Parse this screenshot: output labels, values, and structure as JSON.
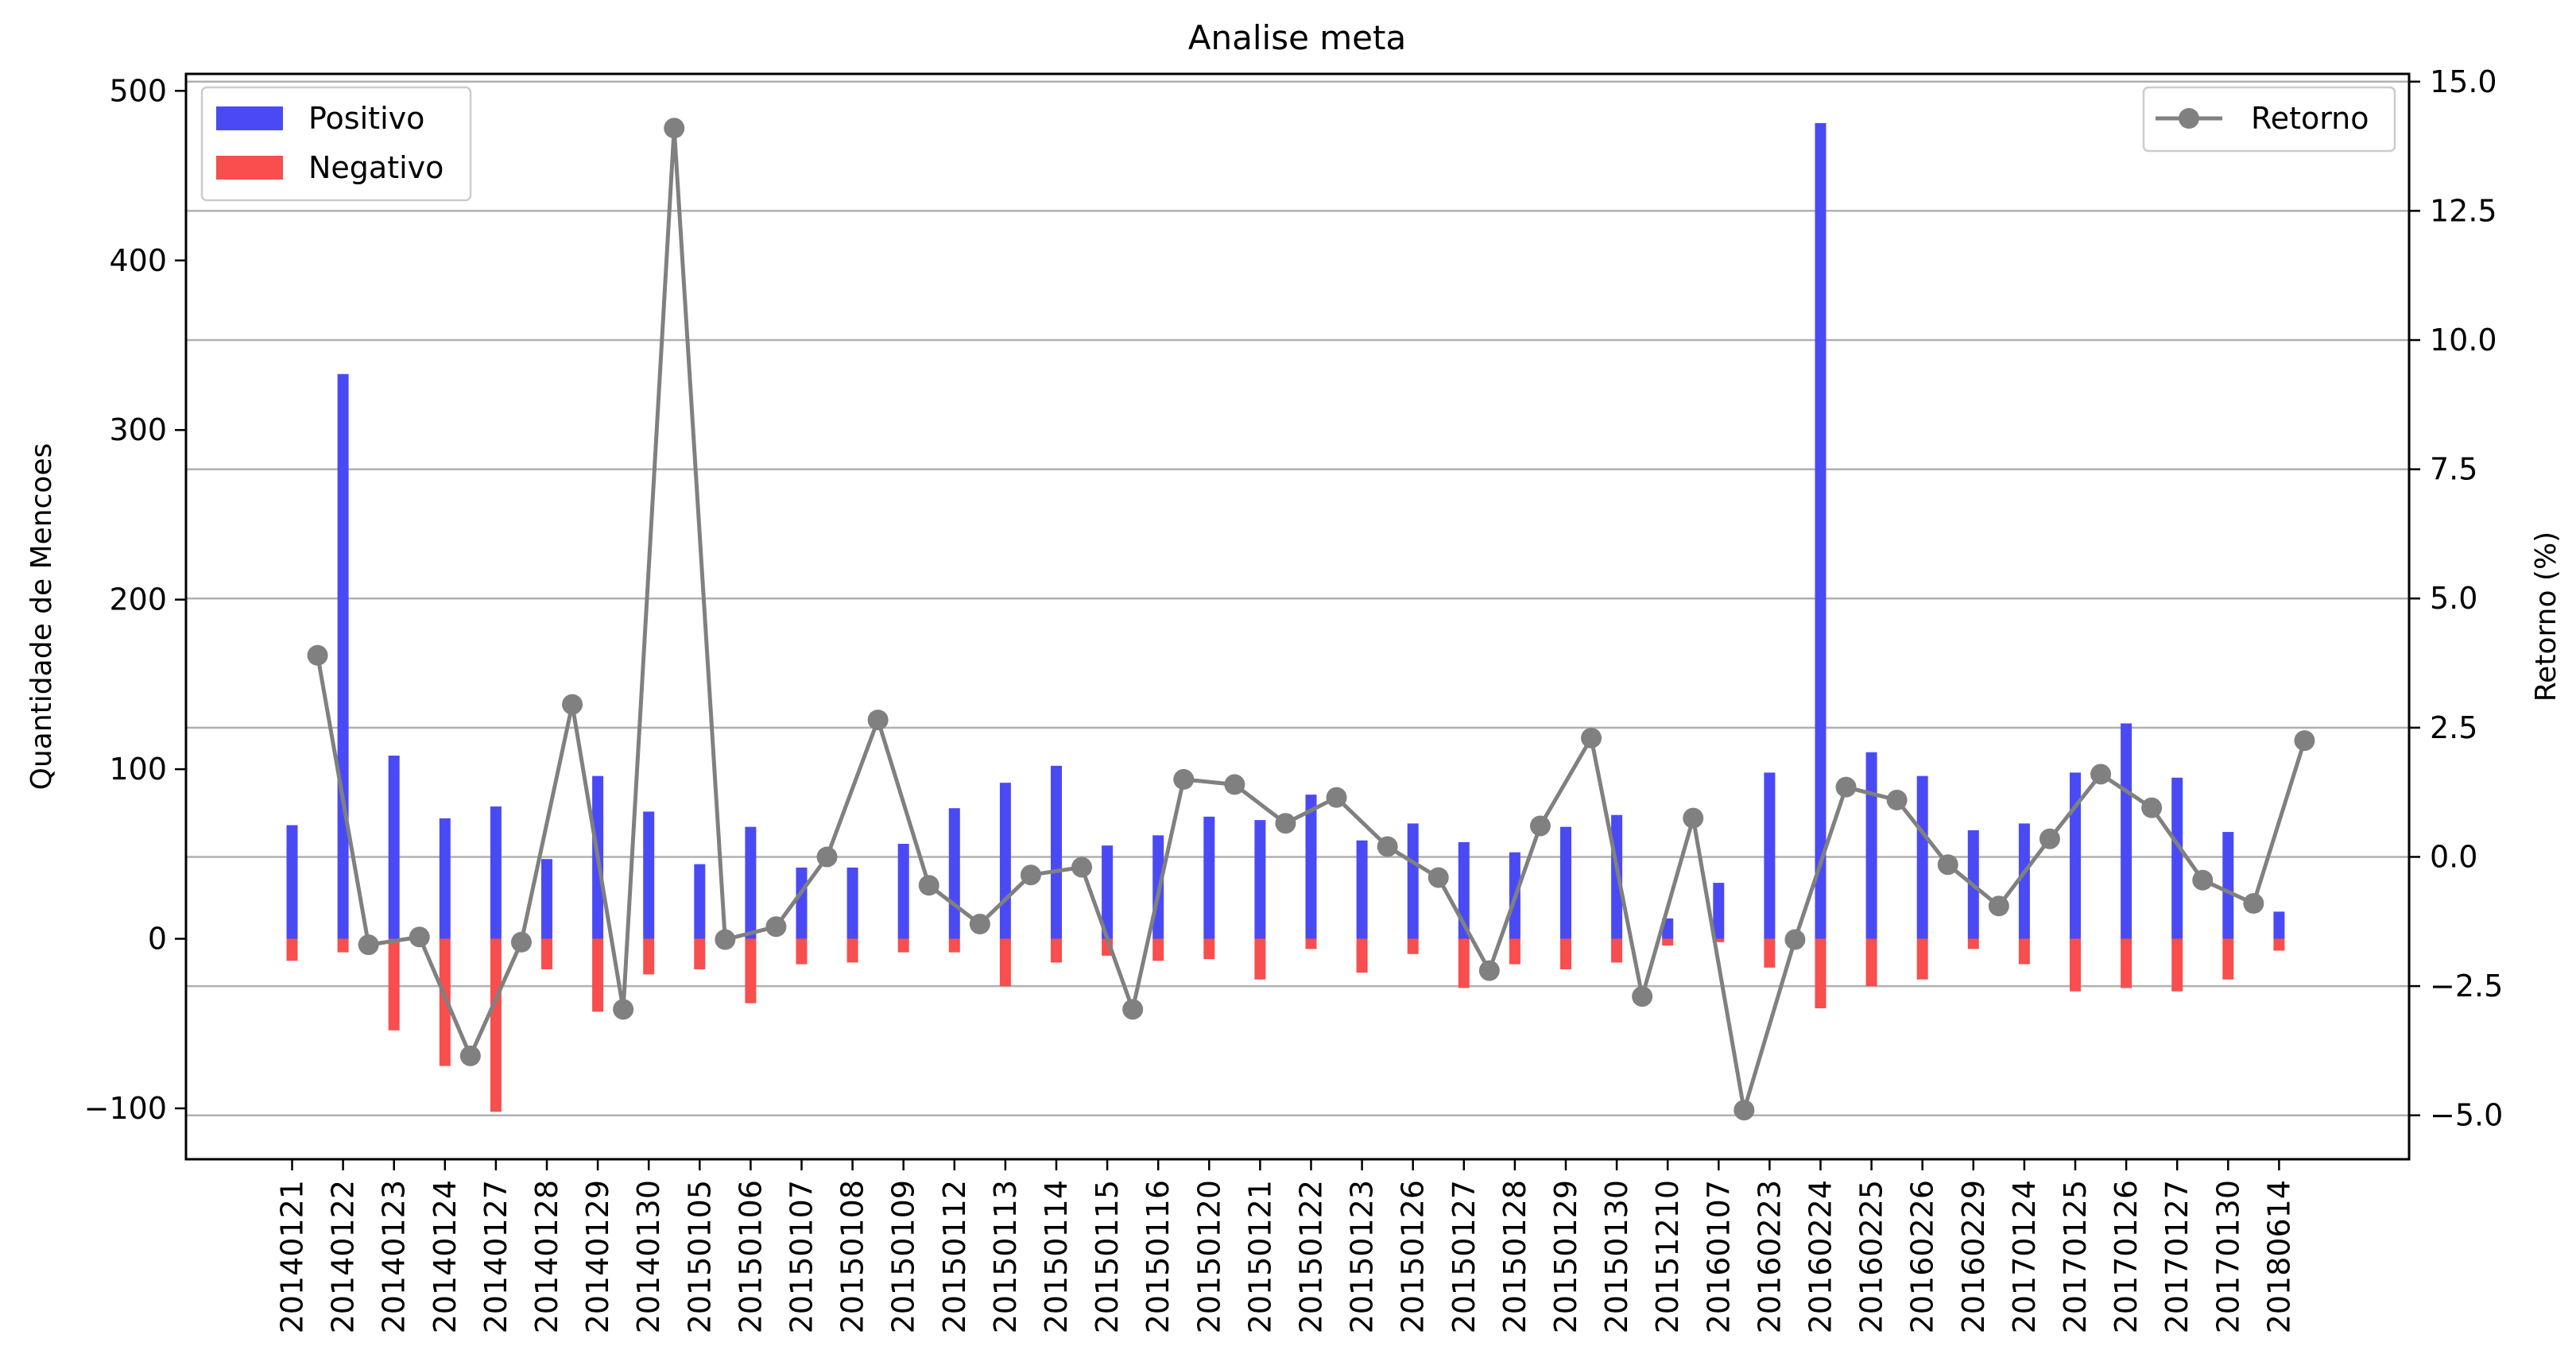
{
  "chart_data": {
    "type": "bar",
    "title": "Analise meta",
    "xlabel": "",
    "ylabel": "Quantidade de Mencoes",
    "y2label": "Retorno (%)",
    "ylim": [
      -130,
      510
    ],
    "y2lim": [
      -5.85,
      15.15
    ],
    "yticks": [
      -100,
      0,
      100,
      200,
      300,
      400,
      500
    ],
    "y2ticks": [
      -5.0,
      -2.5,
      0.0,
      2.5,
      5.0,
      7.5,
      10.0,
      12.5,
      15.0
    ],
    "grid": "right-axis horizontal",
    "legend_left": "top-left",
    "legend_right": "top-right",
    "colors": {
      "positive": "#4a4af5",
      "negative": "#f84e4e",
      "return": "#808080"
    },
    "categories": [
      "20140121",
      "20140122",
      "20140123",
      "20140124",
      "20140127",
      "20140128",
      "20140129",
      "20140130",
      "20150105",
      "20150106",
      "20150107",
      "20150108",
      "20150109",
      "20150112",
      "20150113",
      "20150114",
      "20150115",
      "20150116",
      "20150120",
      "20150121",
      "20150122",
      "20150123",
      "20150126",
      "20150127",
      "20150128",
      "20150129",
      "20150130",
      "20151210",
      "20160107",
      "20160223",
      "20160224",
      "20160225",
      "20160226",
      "20160229",
      "20170124",
      "20170125",
      "20170126",
      "20170127",
      "20170130",
      "20180614"
    ],
    "series": [
      {
        "name": "Positivo",
        "axis": "left",
        "kind": "bar",
        "values": [
          67,
          333,
          108,
          71,
          78,
          47,
          96,
          75,
          44,
          66,
          42,
          42,
          56,
          77,
          92,
          102,
          55,
          61,
          72,
          70,
          85,
          58,
          68,
          57,
          51,
          66,
          73,
          12,
          33,
          98,
          481,
          110,
          96,
          64,
          68,
          98,
          127,
          95,
          63,
          16
        ]
      },
      {
        "name": "Negativo",
        "axis": "left",
        "kind": "bar",
        "values": [
          -13,
          -8,
          -54,
          -75,
          -102,
          -18,
          -43,
          -21,
          -18,
          -38,
          -15,
          -14,
          -8,
          -8,
          -28,
          -14,
          -10,
          -13,
          -12,
          -24,
          -6,
          -20,
          -9,
          -29,
          -15,
          -18,
          -14,
          -4,
          -2,
          -17,
          -41,
          -28,
          -24,
          -6,
          -15,
          -31,
          -29,
          -31,
          -24,
          -7
        ]
      },
      {
        "name": "Retorno",
        "axis": "right",
        "kind": "line",
        "values": [
          3.9,
          -1.7,
          -1.55,
          -3.85,
          -1.65,
          2.95,
          -2.95,
          14.1,
          -1.6,
          -1.35,
          0.0,
          2.65,
          -0.55,
          -1.3,
          -0.35,
          -0.2,
          -2.95,
          1.5,
          1.4,
          0.65,
          1.15,
          0.2,
          -0.4,
          -2.2,
          0.6,
          2.3,
          -2.7,
          0.75,
          -4.9,
          -1.6,
          1.35,
          1.1,
          -0.15,
          -0.95,
          0.35,
          1.6,
          0.95,
          -0.45,
          -0.9,
          2.25
        ]
      }
    ]
  }
}
